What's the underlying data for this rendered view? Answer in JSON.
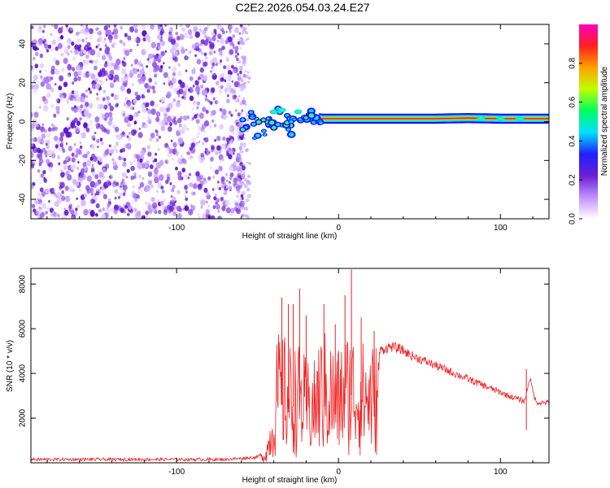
{
  "title": "C2E2.2026.054.03.24.E27",
  "chart_data": [
    {
      "type": "heatmap",
      "xlabel": "Height of straight line (km)",
      "ylabel": "Frequency (Hz)",
      "xlim": [
        -190,
        130
      ],
      "ylim": [
        -50,
        50
      ],
      "xticks": [
        -100,
        0,
        100
      ],
      "yticks": [
        -40,
        -20,
        0,
        20,
        40
      ],
      "colorbar": {
        "label": "Normalized spectral amplitude",
        "range": [
          0,
          1
        ],
        "ticks": [
          "0.0",
          "0.2",
          "0.4",
          "0.6",
          "0.8"
        ],
        "colors": [
          "#ffffff",
          "#c090ff",
          "#6a1fd6",
          "#2020ff",
          "#00e0ff",
          "#00ff60",
          "#c0ff00",
          "#ffa000",
          "#ff2020",
          "#ff00c0"
        ]
      },
      "noise_region_x": [
        -190,
        -58
      ],
      "signal_track": [
        {
          "x": -60,
          "f": 5
        },
        {
          "x": -50,
          "f": 3
        },
        {
          "x": -40,
          "f": 6
        },
        {
          "x": -30,
          "f": 5
        },
        {
          "x": -20,
          "f": 3
        },
        {
          "x": -10,
          "f": 1.5
        },
        {
          "x": 0,
          "f": 1.5
        },
        {
          "x": 20,
          "f": 1.5
        },
        {
          "x": 40,
          "f": 1.5
        },
        {
          "x": 60,
          "f": 1.5
        },
        {
          "x": 80,
          "f": 1.8
        },
        {
          "x": 100,
          "f": 1.5
        },
        {
          "x": 130,
          "f": 1.5
        }
      ]
    },
    {
      "type": "line",
      "xlabel": "Height of straight line (km)",
      "ylabel": "SNR (10 * v/v)",
      "xlim": [
        -190,
        130
      ],
      "ylim": [
        0,
        8700
      ],
      "xticks": [
        -100,
        0,
        100
      ],
      "yticks": [
        2000,
        4000,
        6000,
        8000
      ],
      "series": [
        {
          "name": "SNR",
          "color": "#ee2222",
          "envelope": {
            "x": [
              -190,
              -70,
              -50,
              -45,
              -40,
              -38,
              -35,
              -32,
              -28,
              -25,
              -20,
              -15,
              -12,
              -8,
              -5,
              -2,
              0,
              4,
              8,
              12,
              18,
              25,
              32,
              38,
              45,
              55,
              65,
              75,
              85,
              95,
              105,
              115,
              118,
              122,
              130
            ],
            "y": [
              150,
              150,
              250,
              600,
              2800,
              5200,
              5500,
              5000,
              4800,
              4900,
              4300,
              4200,
              5200,
              5400,
              5200,
              4600,
              4800,
              5400,
              5600,
              5000,
              5000,
              5000,
              5200,
              5100,
              4800,
              4500,
              4200,
              3900,
              3600,
              3300,
              3000,
              2750,
              3800,
              2700,
              2700
            ]
          },
          "spikes": [
            {
              "x": -35,
              "y": 7400
            },
            {
              "x": -31,
              "y": 7100
            },
            {
              "x": -28,
              "y": 7100
            },
            {
              "x": -24,
              "y": 7800
            },
            {
              "x": -20,
              "y": 6600
            },
            {
              "x": -9,
              "y": 7100
            },
            {
              "x": -2,
              "y": 6200
            },
            {
              "x": 4,
              "y": 7500
            },
            {
              "x": 8,
              "y": 8650
            },
            {
              "x": 14,
              "y": 6500
            },
            {
              "x": 22,
              "y": 5900
            },
            {
              "x": 116,
              "y": 4200
            }
          ]
        }
      ]
    }
  ]
}
